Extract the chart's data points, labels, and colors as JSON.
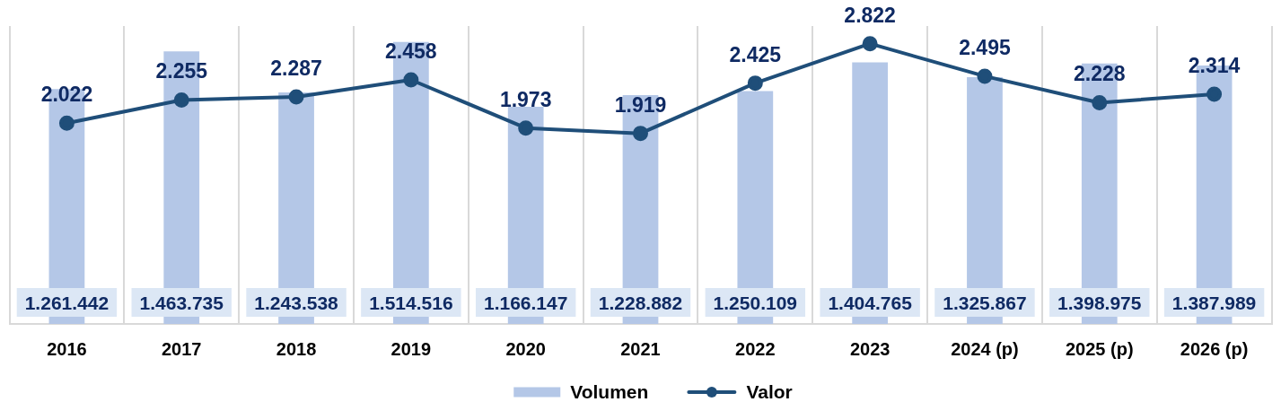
{
  "chart_data": {
    "type": "bar",
    "categories": [
      "2016",
      "2017",
      "2018",
      "2019",
      "2020",
      "2021",
      "2022",
      "2023",
      "2024 (p)",
      "2025 (p)",
      "2026 (p)"
    ],
    "series": [
      {
        "name": "Volumen",
        "color": "#b4c7e7",
        "values": [
          1261442,
          1463735,
          1243538,
          1514516,
          1166147,
          1228882,
          1250109,
          1404765,
          1325867,
          1398975,
          1387989
        ],
        "value_labels": [
          "1.261.442",
          "1.463.735",
          "1.243.538",
          "1.514.516",
          "1.166.147",
          "1.228.882",
          "1.250.109",
          "1.404.765",
          "1.325.867",
          "1.398.975",
          "1.387.989"
        ]
      },
      {
        "name": "Valor",
        "type": "line",
        "axis": "y2",
        "color": "#1f4e79",
        "marker": "circle",
        "values": [
          2022,
          2255,
          2287,
          2458,
          1973,
          1919,
          2425,
          2822,
          2495,
          2228,
          2314
        ],
        "value_labels": [
          "2.022",
          "2.255",
          "2.287",
          "2.458",
          "1.973",
          "1.919",
          "2.425",
          "2.822",
          "2.495",
          "2.228",
          "2.314"
        ]
      }
    ],
    "ylim": [
      0,
      1600000
    ],
    "y2lim": [
      0,
      3000
    ],
    "tick_labels": "x",
    "grid": "x",
    "legend": "bottom"
  }
}
